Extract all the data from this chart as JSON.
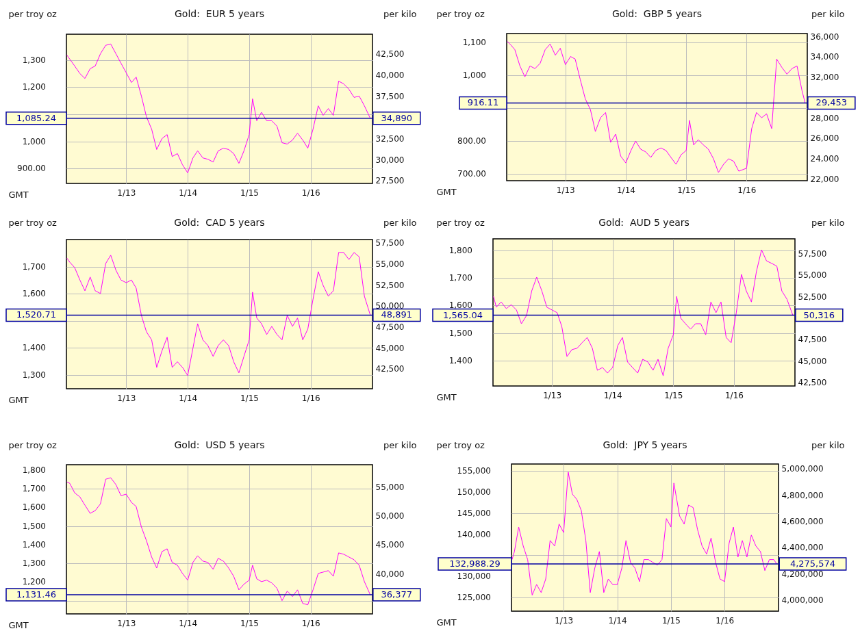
{
  "chart_data": [
    {
      "type": "line",
      "title": "Gold:  EUR 5 years",
      "ylabel": "per troy oz",
      "y2label": "per kilo",
      "xlabel": "GMT",
      "grid": true,
      "x": [
        "2012-01-15",
        "2012-02",
        "2012-03",
        "2012-04",
        "2012-05",
        "2012-06",
        "2012-07",
        "2012-08",
        "2012-09",
        "2012-10",
        "2012-11",
        "2012-12",
        "2013-01",
        "2013-02",
        "2013-03",
        "2013-04",
        "2013-05",
        "2013-06",
        "2013-07",
        "2013-08",
        "2013-09",
        "2013-10",
        "2013-11",
        "2013-12",
        "2014-01",
        "2014-02",
        "2014-03",
        "2014-04",
        "2014-05",
        "2014-06",
        "2014-07",
        "2014-08",
        "2014-09",
        "2014-10",
        "2014-11",
        "2014-12",
        "2015-01",
        "2015-01-21",
        "2015-02-15",
        "2015-03-15",
        "2015-04-15",
        "2015-05-15",
        "2015-06-15",
        "2015-07-15",
        "2015-08-15",
        "2015-09-15",
        "2015-10-15",
        "2015-11-15",
        "2015-12-15",
        "2016-01-15",
        "2016-02-15",
        "2016-03-15",
        "2016-04-15",
        "2016-05-15",
        "2016-06-15",
        "2016-07-15",
        "2016-08-15",
        "2016-09-15",
        "2016-10-15",
        "2016-11-15",
        "2016-12-20"
      ],
      "series": [
        {
          "color": "#ff00ff",
          "values": [
            1318,
            1303,
            1278,
            1250,
            1232,
            1268,
            1278,
            1323,
            1354,
            1359,
            1323,
            1288,
            1253,
            1217,
            1237,
            1167,
            1091,
            1045,
            970,
            1010,
            1025,
            944,
            955,
            914,
            884,
            939,
            965,
            939,
            934,
            924,
            965,
            975,
            970,
            955,
            919,
            965,
            1025,
            1157,
            1076,
            1107,
            1076,
            1076,
            1056,
            995,
            990,
            1005,
            1030,
            1005,
            975,
            1045,
            1131,
            1096,
            1121,
            1096,
            1222,
            1212,
            1192,
            1162,
            1167,
            1131,
            1085
          ]
        }
      ],
      "xlim": [
        "2012-01-12",
        "2017-01-02"
      ],
      "xticks": [
        {
          "value": "2013-01-01",
          "label": "1/13"
        },
        {
          "value": "2014-01-01",
          "label": "1/14"
        },
        {
          "value": "2015-01-01",
          "label": "1/15"
        },
        {
          "value": "2016-01-01",
          "label": "1/16"
        }
      ],
      "ylim": [
        845,
        1395
      ],
      "yticks": [
        {
          "value": 900,
          "label": "900.00"
        },
        {
          "value": 1000,
          "label": "1,000"
        },
        {
          "value": 1100,
          "label": null
        },
        {
          "value": 1200,
          "label": "1,200"
        },
        {
          "value": 1300,
          "label": "1,300"
        }
      ],
      "y2lim": [
        27170,
        44850
      ],
      "y2ticks": [
        {
          "value": 27500,
          "label": "27,500"
        },
        {
          "value": 30000,
          "label": "30,000"
        },
        {
          "value": 32500,
          "label": "32,500"
        },
        {
          "value": 37500,
          "label": "37,500"
        },
        {
          "value": 40000,
          "label": "40,000"
        },
        {
          "value": 42500,
          "label": "42,500"
        }
      ],
      "ref_lines": [
        {
          "axis": "y",
          "value": 1085.24,
          "label": "1,085.24",
          "color": "#0000a0"
        }
      ],
      "annotations": [
        {
          "text": "34,890",
          "x": "2016-12-20",
          "y": 1085.24
        }
      ]
    },
    {
      "type": "line",
      "title": "Gold:  GBP 5 years",
      "ylabel": "per troy oz",
      "y2label": "per kilo",
      "xlabel": "GMT",
      "grid": true,
      "x": [
        "2012-01-15",
        "2012-02",
        "2012-03",
        "2012-04",
        "2012-05",
        "2012-06",
        "2012-07",
        "2012-08",
        "2012-09",
        "2012-10",
        "2012-11",
        "2012-12",
        "2013-01",
        "2013-02",
        "2013-03",
        "2013-04",
        "2013-05",
        "2013-06",
        "2013-07",
        "2013-08",
        "2013-09",
        "2013-10",
        "2013-11",
        "2013-12",
        "2014-01",
        "2014-02",
        "2014-03",
        "2014-04",
        "2014-05",
        "2014-06",
        "2014-07",
        "2014-08",
        "2014-09",
        "2014-10",
        "2014-11",
        "2014-12",
        "2015-01",
        "2015-01-21",
        "2015-02-15",
        "2015-03-15",
        "2015-04-15",
        "2015-05-15",
        "2015-06-15",
        "2015-07-15",
        "2015-08-15",
        "2015-09-15",
        "2015-10-15",
        "2015-11-15",
        "2016-01",
        "2016-02",
        "2016-03",
        "2016-04",
        "2016-05",
        "2016-06",
        "2016-07",
        "2016-08",
        "2016-09",
        "2016-10",
        "2016-11",
        "2016-12",
        "2016-12-20"
      ],
      "series": [
        {
          "color": "#ff00ff",
          "values": [
            1104,
            1096,
            1079,
            1029,
            996,
            1029,
            1021,
            1037,
            1079,
            1096,
            1062,
            1083,
            1033,
            1058,
            1050,
            987,
            929,
            896,
            829,
            871,
            887,
            796,
            821,
            754,
            733,
            771,
            800,
            775,
            767,
            750,
            771,
            779,
            771,
            750,
            729,
            758,
            771,
            863,
            788,
            804,
            788,
            775,
            746,
            704,
            729,
            746,
            738,
            708,
            717,
            838,
            887,
            871,
            883,
            838,
            1050,
            1025,
            1004,
            1021,
            1029,
            954,
            916
          ]
        }
      ],
      "xlim": [
        "2012-01-12",
        "2017-01-02"
      ],
      "xticks": [
        {
          "value": "2013-01-01",
          "label": "1/13"
        },
        {
          "value": "2014-01-01",
          "label": "1/14"
        },
        {
          "value": "2015-01-01",
          "label": "1/15"
        },
        {
          "value": "2016-01-01",
          "label": "1/16"
        }
      ],
      "ylim": [
        679,
        1128
      ],
      "yticks": [
        {
          "value": 700,
          "label": "700.00"
        },
        {
          "value": 800,
          "label": "800.00"
        },
        {
          "value": 900,
          "label": null
        },
        {
          "value": 1000,
          "label": "1,000"
        },
        {
          "value": 1100,
          "label": "1,100"
        }
      ],
      "y2lim": [
        21830,
        36270
      ],
      "y2ticks": [
        {
          "value": 22000,
          "label": "22,000"
        },
        {
          "value": 24000,
          "label": "24,000"
        },
        {
          "value": 26000,
          "label": "26,000"
        },
        {
          "value": 28000,
          "label": "28,000"
        },
        {
          "value": 32000,
          "label": "32,000"
        },
        {
          "value": 34000,
          "label": "34,000"
        },
        {
          "value": 36000,
          "label": "36,000"
        }
      ],
      "ref_lines": [
        {
          "axis": "y",
          "value": 916.11,
          "label": "916.11",
          "color": "#0000a0"
        }
      ],
      "annotations": [
        {
          "text": "29,453",
          "x": "2016-12-20",
          "y": 916.11
        }
      ]
    },
    {
      "type": "line",
      "title": "Gold:  CAD 5 years",
      "ylabel": "per troy oz",
      "y2label": "per kilo",
      "xlabel": "GMT",
      "grid": true,
      "x": [
        "2012-01-15",
        "2012-02",
        "2012-03",
        "2012-04",
        "2012-05",
        "2012-06",
        "2012-07",
        "2012-08",
        "2012-09",
        "2012-10",
        "2012-11",
        "2012-12",
        "2013-01",
        "2013-02",
        "2013-03",
        "2013-04",
        "2013-05",
        "2013-06",
        "2013-07",
        "2013-08",
        "2013-09",
        "2013-10",
        "2013-11",
        "2013-12",
        "2014-01",
        "2014-02",
        "2014-03",
        "2014-04",
        "2014-05",
        "2014-06",
        "2014-07",
        "2014-08",
        "2014-09",
        "2014-10",
        "2014-11",
        "2014-12",
        "2015-01",
        "2015-01-21",
        "2015-02-15",
        "2015-03-15",
        "2015-04-15",
        "2015-05-15",
        "2015-06-15",
        "2015-07-15",
        "2015-08-15",
        "2015-09-15",
        "2015-10-15",
        "2015-11-15",
        "2015-12-15",
        "2016-01-15",
        "2016-02-15",
        "2016-03-15",
        "2016-04-15",
        "2016-05-15",
        "2016-06-15",
        "2016-07-15",
        "2016-08-15",
        "2016-09-15",
        "2016-10-15",
        "2016-11-15",
        "2016-12-20"
      ],
      "series": [
        {
          "color": "#ff00ff",
          "values": [
            1732,
            1717,
            1697,
            1651,
            1611,
            1662,
            1611,
            1601,
            1712,
            1743,
            1687,
            1651,
            1641,
            1651,
            1621,
            1520,
            1459,
            1429,
            1327,
            1388,
            1439,
            1327,
            1348,
            1327,
            1297,
            1398,
            1489,
            1429,
            1408,
            1368,
            1408,
            1429,
            1408,
            1348,
            1307,
            1368,
            1429,
            1606,
            1510,
            1489,
            1449,
            1479,
            1449,
            1429,
            1520,
            1479,
            1510,
            1429,
            1469,
            1580,
            1682,
            1631,
            1591,
            1611,
            1753,
            1753,
            1727,
            1753,
            1737,
            1591,
            1521
          ]
        }
      ],
      "xlim": [
        "2012-01-12",
        "2017-01-02"
      ],
      "xticks": [
        {
          "value": "2013-01-01",
          "label": "1/13"
        },
        {
          "value": "2014-01-01",
          "label": "1/14"
        },
        {
          "value": "2015-01-01",
          "label": "1/15"
        },
        {
          "value": "2016-01-01",
          "label": "1/16"
        }
      ],
      "ylim": [
        1248,
        1801
      ],
      "yticks": [
        {
          "value": 1300,
          "label": "1,300"
        },
        {
          "value": 1400,
          "label": "1,400"
        },
        {
          "value": 1500,
          "label": null
        },
        {
          "value": 1600,
          "label": "1,600"
        },
        {
          "value": 1700,
          "label": "1,700"
        }
      ],
      "y2lim": [
        40120,
        57900
      ],
      "y2ticks": [
        {
          "value": 42500,
          "label": "42,500"
        },
        {
          "value": 45000,
          "label": "45,000"
        },
        {
          "value": 47500,
          "label": "47,500"
        },
        {
          "value": 50000,
          "label": "50,000"
        },
        {
          "value": 52500,
          "label": "52,500"
        },
        {
          "value": 55000,
          "label": "55,000"
        },
        {
          "value": 57500,
          "label": "57,500"
        }
      ],
      "ref_lines": [
        {
          "axis": "y",
          "value": 1520.71,
          "label": "1,520.71",
          "color": "#0000a0"
        }
      ],
      "annotations": [
        {
          "text": "48,891",
          "x": "2016-12-20",
          "y": 1520.71
        }
      ]
    },
    {
      "type": "line",
      "title": "Gold:  AUD 5 years",
      "ylabel": "per troy oz",
      "y2label": "per kilo",
      "xlabel": "GMT",
      "grid": true,
      "x": [
        "2012-01-15",
        "2012-02",
        "2012-03",
        "2012-04",
        "2012-05",
        "2012-06",
        "2012-07",
        "2012-08",
        "2012-09",
        "2012-10",
        "2012-11",
        "2012-12",
        "2013-01",
        "2013-02",
        "2013-03",
        "2013-04",
        "2013-05",
        "2013-06",
        "2013-07",
        "2013-08",
        "2013-09",
        "2013-10",
        "2013-11",
        "2013-12",
        "2014-01",
        "2014-02",
        "2014-03",
        "2014-04",
        "2014-05",
        "2014-06",
        "2014-07",
        "2014-08",
        "2014-09",
        "2014-10",
        "2014-11",
        "2014-12",
        "2015-01",
        "2015-01-21",
        "2015-02-15",
        "2015-03-15",
        "2015-04-15",
        "2015-05-15",
        "2015-06-15",
        "2015-07-15",
        "2015-08-15",
        "2015-09-15",
        "2015-10-15",
        "2015-11-15",
        "2015-12-15",
        "2016-01-15",
        "2016-02-15",
        "2016-03-15",
        "2016-04-15",
        "2016-05-15",
        "2016-06-15",
        "2016-07-15",
        "2016-08-15",
        "2016-09-15",
        "2016-10-15",
        "2016-11-15",
        "2016-12-20"
      ],
      "series": [
        {
          "color": "#ff00ff",
          "values": [
            1633,
            1594,
            1613,
            1589,
            1603,
            1584,
            1534,
            1564,
            1653,
            1703,
            1653,
            1594,
            1584,
            1574,
            1524,
            1415,
            1440,
            1445,
            1465,
            1484,
            1445,
            1365,
            1375,
            1355,
            1375,
            1455,
            1484,
            1395,
            1375,
            1355,
            1405,
            1395,
            1365,
            1405,
            1345,
            1445,
            1494,
            1633,
            1554,
            1534,
            1514,
            1534,
            1534,
            1494,
            1613,
            1574,
            1613,
            1484,
            1465,
            1574,
            1713,
            1653,
            1613,
            1723,
            1802,
            1762,
            1753,
            1743,
            1653,
            1623,
            1565
          ]
        }
      ],
      "xlim": [
        "2012-01-12",
        "2017-01-02"
      ],
      "xticks": [
        {
          "value": "2013-01-01",
          "label": "1/13"
        },
        {
          "value": "2014-01-01",
          "label": "1/14"
        },
        {
          "value": "2015-01-01",
          "label": "1/15"
        },
        {
          "value": "2016-01-01",
          "label": "1/16"
        }
      ],
      "ylim": [
        1308,
        1842
      ],
      "yticks": [
        {
          "value": 1400,
          "label": "1,400"
        },
        {
          "value": 1500,
          "label": "1,500"
        },
        {
          "value": 1600,
          "label": "1,600"
        },
        {
          "value": 1700,
          "label": "1,700"
        },
        {
          "value": 1800,
          "label": "1,800"
        }
      ],
      "y2lim": [
        42050,
        59220
      ],
      "y2ticks": [
        {
          "value": 42500,
          "label": "42,500"
        },
        {
          "value": 45000,
          "label": "45,000"
        },
        {
          "value": 47500,
          "label": "47,500"
        },
        {
          "value": 52500,
          "label": "52,500"
        },
        {
          "value": 55000,
          "label": "55,000"
        },
        {
          "value": 57500,
          "label": "57,500"
        }
      ],
      "ref_lines": [
        {
          "axis": "y",
          "value": 1565.04,
          "label": "1,565.04",
          "color": "#0000a0"
        }
      ],
      "annotations": [
        {
          "text": "50,316",
          "x": "2016-12-20",
          "y": 1565.04
        }
      ]
    },
    {
      "type": "line",
      "title": "Gold:  USD 5 years",
      "ylabel": "per troy oz",
      "y2label": "per kilo",
      "xlabel": "GMT",
      "grid": true,
      "x": [
        "2012-01-15",
        "2012-02",
        "2012-03",
        "2012-04",
        "2012-05",
        "2012-06",
        "2012-07",
        "2012-08",
        "2012-09",
        "2012-10",
        "2012-11",
        "2012-12",
        "2013-01",
        "2013-02",
        "2013-03",
        "2013-04",
        "2013-05",
        "2013-06",
        "2013-07",
        "2013-08",
        "2013-09",
        "2013-10",
        "2013-11",
        "2013-12",
        "2014-01",
        "2014-02",
        "2014-03",
        "2014-04",
        "2014-05",
        "2014-06",
        "2014-07",
        "2014-08",
        "2014-09",
        "2014-10",
        "2014-11",
        "2014-12",
        "2015-01",
        "2015-01-21",
        "2015-02-15",
        "2015-03-15",
        "2015-04-15",
        "2015-05-15",
        "2015-06-15",
        "2015-07-15",
        "2015-08-15",
        "2015-09-15",
        "2015-10-15",
        "2015-11-15",
        "2015-12-15",
        "2016-01-15",
        "2016-02-15",
        "2016-03-15",
        "2016-04-15",
        "2016-05-15",
        "2016-06-15",
        "2016-07-15",
        "2016-08-15",
        "2016-09-15",
        "2016-10-15",
        "2016-11-15",
        "2016-12-20"
      ],
      "series": [
        {
          "color": "#ff00ff",
          "values": [
            1737,
            1729,
            1678,
            1656,
            1612,
            1568,
            1583,
            1619,
            1751,
            1759,
            1722,
            1663,
            1671,
            1627,
            1605,
            1495,
            1422,
            1334,
            1275,
            1363,
            1378,
            1305,
            1290,
            1246,
            1210,
            1305,
            1341,
            1312,
            1305,
            1268,
            1327,
            1312,
            1275,
            1231,
            1158,
            1188,
            1210,
            1290,
            1217,
            1202,
            1210,
            1195,
            1166,
            1100,
            1151,
            1122,
            1158,
            1085,
            1078,
            1158,
            1246,
            1253,
            1261,
            1231,
            1356,
            1349,
            1334,
            1319,
            1290,
            1202,
            1131
          ]
        }
      ],
      "xlim": [
        "2012-01-12",
        "2017-01-02"
      ],
      "xticks": [
        {
          "value": "2013-01-01",
          "label": "1/13"
        },
        {
          "value": "2014-01-01",
          "label": "1/14"
        },
        {
          "value": "2015-01-01",
          "label": "1/15"
        },
        {
          "value": "2016-01-01",
          "label": "1/16"
        }
      ],
      "ylim": [
        1029,
        1829
      ],
      "yticks": [
        {
          "value": 1100,
          "label": null
        },
        {
          "value": 1200,
          "label": "1,200"
        },
        {
          "value": 1300,
          "label": "1,300"
        },
        {
          "value": 1400,
          "label": "1,400"
        },
        {
          "value": 1500,
          "label": "1,500"
        },
        {
          "value": 1600,
          "label": "1,600"
        },
        {
          "value": 1700,
          "label": "1,700"
        },
        {
          "value": 1800,
          "label": "1,800"
        }
      ],
      "y2lim": [
        33080,
        58800
      ],
      "y2ticks": [
        {
          "value": 40000,
          "label": "40,000"
        },
        {
          "value": 45000,
          "label": "45,000"
        },
        {
          "value": 50000,
          "label": "50,000"
        },
        {
          "value": 55000,
          "label": "55,000"
        }
      ],
      "ref_lines": [
        {
          "axis": "y",
          "value": 1131.46,
          "label": "1,131.46",
          "color": "#0000a0"
        }
      ],
      "annotations": [
        {
          "text": "36,377",
          "x": "2016-12-20",
          "y": 1131.46
        }
      ]
    },
    {
      "type": "line",
      "title": "Gold:  JPY 5 years",
      "ylabel": "per troy oz",
      "y2label": "per kilo",
      "xlabel": "GMT",
      "grid": true,
      "x": [
        "2012-01-16",
        "2012-02",
        "2012-03",
        "2012-04",
        "2012-05",
        "2012-06",
        "2012-07",
        "2012-08",
        "2012-09",
        "2012-10",
        "2012-11",
        "2012-12",
        "2013-01",
        "2013-02",
        "2013-03",
        "2013-04",
        "2013-05",
        "2013-06",
        "2013-07",
        "2013-08",
        "2013-09",
        "2013-10",
        "2013-11",
        "2013-12",
        "2014-01",
        "2014-02",
        "2014-03",
        "2014-04",
        "2014-05",
        "2014-06",
        "2014-07",
        "2014-08",
        "2014-09",
        "2014-10",
        "2014-11",
        "2014-12",
        "2015-01",
        "2015-01-21",
        "2015-03",
        "2015-04",
        "2015-05",
        "2015-06",
        "2015-07",
        "2015-08",
        "2015-09",
        "2015-10",
        "2015-11",
        "2015-12",
        "2016-01",
        "2016-02",
        "2016-03",
        "2016-04",
        "2016-05",
        "2016-06",
        "2016-07",
        "2016-08",
        "2016-09",
        "2016-10",
        "2016-11",
        "2016-12",
        "2016-12-20"
      ],
      "series": [
        {
          "color": "#ff00ff",
          "values": [
            134000,
            135900,
            141700,
            137200,
            134000,
            125600,
            128100,
            126200,
            129400,
            138500,
            137200,
            142400,
            140400,
            154700,
            149500,
            148200,
            145600,
            138500,
            126200,
            132000,
            135900,
            126200,
            129400,
            128100,
            128100,
            132000,
            138500,
            133300,
            132000,
            128800,
            134000,
            134000,
            133300,
            132700,
            134000,
            143700,
            141700,
            152100,
            144300,
            142400,
            146900,
            146300,
            141100,
            137200,
            135300,
            139100,
            133300,
            129400,
            128800,
            137900,
            141700,
            134600,
            138500,
            134600,
            139800,
            137200,
            135900,
            131400,
            134000,
            134000,
            133000
          ]
        }
      ],
      "xlim": [
        "2012-01-12",
        "2017-01-02"
      ],
      "xticks": [
        {
          "value": "2013-01-01",
          "label": "1/13"
        },
        {
          "value": "2014-01-01",
          "label": "1/14"
        },
        {
          "value": "2015-01-01",
          "label": "1/15"
        },
        {
          "value": "2016-01-01",
          "label": "1/16"
        }
      ],
      "ylim": [
        121800,
        156600
      ],
      "yticks": [
        {
          "value": 125000,
          "label": "125,000"
        },
        {
          "value": 130000,
          "label": "130,000"
        },
        {
          "value": 135000,
          "label": null
        },
        {
          "value": 140000,
          "label": "140,000"
        },
        {
          "value": 145000,
          "label": "145,000"
        },
        {
          "value": 150000,
          "label": "150,000"
        },
        {
          "value": 155000,
          "label": "155,000"
        }
      ],
      "y2lim": [
        3916000,
        5034600
      ],
      "y2ticks": [
        {
          "value": 4000000,
          "label": "4,000,000"
        },
        {
          "value": 4200000,
          "label": "4,200,000"
        },
        {
          "value": 4400000,
          "label": "4,400,000"
        },
        {
          "value": 4600000,
          "label": "4,600,000"
        },
        {
          "value": 4800000,
          "label": "4,800,000"
        },
        {
          "value": 5000000,
          "label": "5,000,000"
        }
      ],
      "ref_lines": [
        {
          "axis": "y",
          "value": 132988.29,
          "label": "132,988.29",
          "color": "#0000a0"
        }
      ],
      "annotations": [
        {
          "text": "4,275,574",
          "x": "2016-12-20",
          "y": 132988.29
        }
      ]
    }
  ]
}
